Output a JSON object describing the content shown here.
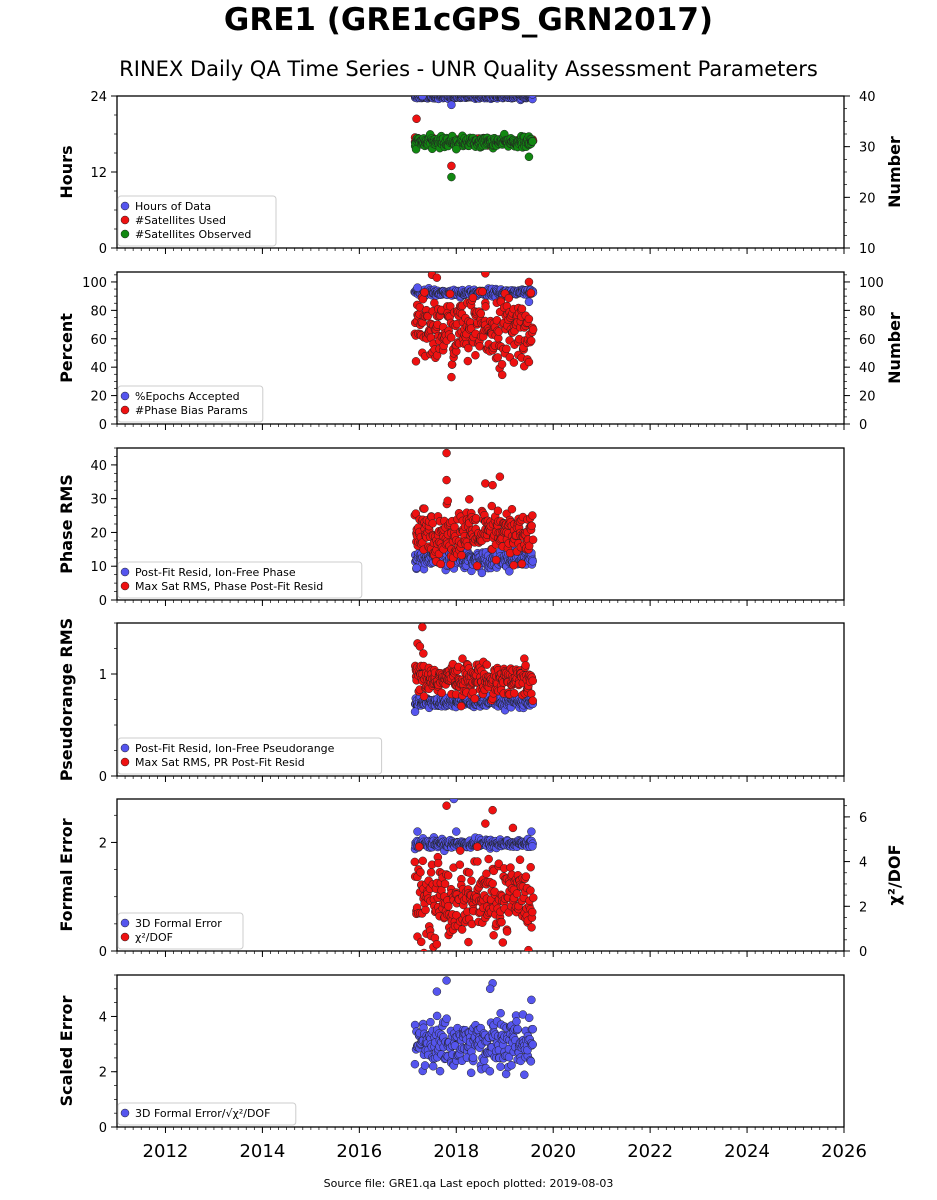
{
  "title": "GRE1 (GRE1cGPS_GRN2017)",
  "subtitle": "RINEX Daily QA Time Series - UNR Quality Assessment Parameters",
  "footer": "Source file: GRE1.qa Last epoch plotted: 2019-08-03",
  "colors": {
    "blue": "#5555ee",
    "red": "#ee1111",
    "green": "#118811"
  },
  "chart_data": [
    {
      "type": "scatter",
      "xlim": [
        2011.0,
        2026.0
      ],
      "xticks": [
        "2012",
        "2014",
        "2016",
        "2018",
        "2020",
        "2022",
        "2024",
        "2026"
      ],
      "ylabel": "Hours",
      "ylim": [
        0,
        24
      ],
      "yticks": [
        "0",
        "12",
        "24"
      ],
      "ylabel_right": "Number",
      "ylim_right": [
        10,
        40
      ],
      "yticks_right": [
        "10",
        "20",
        "30",
        "40"
      ],
      "legend": "lower-left",
      "series": [
        {
          "name": "Hours of Data",
          "color": "blue",
          "axis": "left",
          "x": [
            2017.15,
            2019.58
          ],
          "typical": 23.9,
          "spread": 0.15,
          "outliers": [
            [
              2017.9,
              22.6
            ],
            [
              2017.3,
              24.0
            ]
          ]
        },
        {
          "name": "#Satellites Used",
          "color": "red",
          "axis": "right",
          "x": [
            2017.15,
            2019.58
          ],
          "typical": 31.0,
          "spread": 0.3,
          "outliers": [
            [
              2017.18,
              35.5
            ],
            [
              2017.9,
              26.2
            ],
            [
              2017.95,
              30.5
            ]
          ]
        },
        {
          "name": "#Satellites Observed",
          "color": "green",
          "axis": "right",
          "x": [
            2017.15,
            2019.58
          ],
          "typical": 30.9,
          "spread": 0.5,
          "outliers": [
            [
              2017.9,
              24.0
            ],
            [
              2019.5,
              28.0
            ],
            [
              2018.0,
              29.5
            ]
          ]
        }
      ]
    },
    {
      "type": "scatter",
      "xlim": [
        2011.0,
        2026.0
      ],
      "xticks": [
        "2012",
        "2014",
        "2016",
        "2018",
        "2020",
        "2022",
        "2024",
        "2026"
      ],
      "ylabel": "Percent",
      "ylim": [
        0,
        107
      ],
      "yticks": [
        "0",
        "20",
        "40",
        "60",
        "80",
        "100"
      ],
      "ylabel_right": "Number",
      "ylim_right": [
        0,
        107
      ],
      "yticks_right": [
        "0",
        "20",
        "40",
        "60",
        "80",
        "100"
      ],
      "legend": "lower-left",
      "series": [
        {
          "name": "%Epochs Accepted",
          "color": "blue",
          "axis": "left",
          "x": [
            2017.15,
            2019.58
          ],
          "typical": 92.5,
          "spread": 1.2,
          "outliers": [
            [
              2017.2,
              96.0
            ],
            [
              2019.5,
              86.0
            ]
          ]
        },
        {
          "name": "#Phase Bias Params",
          "color": "red",
          "axis": "right",
          "x": [
            2017.15,
            2019.58
          ],
          "typical": 66,
          "spread": 12,
          "outliers": [
            [
              2017.9,
              33.0
            ],
            [
              2017.5,
              105.0
            ],
            [
              2018.6,
              106.0
            ],
            [
              2019.5,
              100.0
            ],
            [
              2017.6,
              103.0
            ]
          ]
        }
      ]
    },
    {
      "type": "scatter",
      "xlim": [
        2011.0,
        2026.0
      ],
      "xticks": [
        "2012",
        "2014",
        "2016",
        "2018",
        "2020",
        "2022",
        "2024",
        "2026"
      ],
      "ylabel": "Phase RMS",
      "ylim": [
        0,
        45
      ],
      "yticks": [
        "0",
        "10",
        "20",
        "30",
        "40"
      ],
      "legend": "lower-left",
      "series": [
        {
          "name": "Post-Fit Resid, Ion-Free Phase",
          "color": "blue",
          "axis": "left",
          "x": [
            2017.15,
            2019.58
          ],
          "typical": 12.0,
          "spread": 1.2,
          "outliers": [
            [
              2017.18,
              9.5
            ]
          ]
        },
        {
          "name": "Max Sat RMS, Phase Post-Fit Resid",
          "color": "red",
          "axis": "left",
          "x": [
            2017.15,
            2019.58
          ],
          "typical": 19.5,
          "spread": 3.8,
          "outliers": [
            [
              2017.8,
              43.5
            ],
            [
              2017.8,
              35.5
            ],
            [
              2018.6,
              34.5
            ],
            [
              2018.9,
              36.5
            ],
            [
              2018.75,
              34.0
            ]
          ]
        }
      ]
    },
    {
      "type": "scatter",
      "xlim": [
        2011.0,
        2026.0
      ],
      "xticks": [
        "2012",
        "2014",
        "2016",
        "2018",
        "2020",
        "2022",
        "2024",
        "2026"
      ],
      "ylabel": "Pseudorange RMS",
      "ylim": [
        0,
        1.5
      ],
      "yticks": [
        "0",
        "1"
      ],
      "legend": "lower-left",
      "series": [
        {
          "name": "Post-Fit Resid, Ion-Free Pseudorange",
          "color": "blue",
          "axis": "left",
          "x": [
            2017.15,
            2019.58
          ],
          "typical": 0.72,
          "spread": 0.025,
          "outliers": [
            [
              2017.15,
              0.63
            ]
          ]
        },
        {
          "name": "Max Sat RMS, PR Post-Fit Resid",
          "color": "red",
          "axis": "left",
          "x": [
            2017.15,
            2019.58
          ],
          "typical": 0.95,
          "spread": 0.08,
          "outliers": [
            [
              2017.3,
              1.46
            ],
            [
              2017.2,
              1.3
            ],
            [
              2017.25,
              1.27
            ]
          ]
        }
      ]
    },
    {
      "type": "scatter",
      "xlim": [
        2011.0,
        2026.0
      ],
      "xticks": [
        "2012",
        "2014",
        "2016",
        "2018",
        "2020",
        "2022",
        "2024",
        "2026"
      ],
      "ylabel": "Formal Error",
      "ylim": [
        0,
        2.8
      ],
      "yticks": [
        "0",
        "2"
      ],
      "ylabel_right": "χ²/DOF",
      "ylim_right": [
        0,
        6.8
      ],
      "yticks_right": [
        "0",
        "2",
        "4",
        "6"
      ],
      "legend": "lower-left",
      "series": [
        {
          "name": "3D Formal Error",
          "color": "blue",
          "axis": "left",
          "x": [
            2017.15,
            2019.58
          ],
          "typical": 1.98,
          "spread": 0.04,
          "outliers": [
            [
              2017.2,
              2.2
            ],
            [
              2017.95,
              2.8
            ],
            [
              2018.0,
              2.2
            ],
            [
              2019.55,
              2.2
            ]
          ]
        },
        {
          "name": "χ²/DOF",
          "color": "red",
          "axis": "right",
          "x": [
            2017.15,
            2019.58
          ],
          "typical": 2.3,
          "spread": 0.9,
          "outliers": [
            [
              2017.8,
              6.5
            ],
            [
              2018.75,
              6.3
            ],
            [
              2018.6,
              5.7
            ]
          ]
        }
      ]
    },
    {
      "type": "scatter",
      "xlim": [
        2011.0,
        2026.0
      ],
      "xticks": [
        "2012",
        "2014",
        "2016",
        "2018",
        "2020",
        "2022",
        "2024",
        "2026"
      ],
      "ylabel": "Scaled Error",
      "ylim": [
        0,
        5.5
      ],
      "yticks": [
        "0",
        "2",
        "4"
      ],
      "legend": "lower-left",
      "series": [
        {
          "name": "3D Formal Error/√χ²/DOF",
          "color": "blue",
          "axis": "left",
          "x": [
            2017.15,
            2019.58
          ],
          "typical": 3.0,
          "spread": 0.45,
          "outliers": [
            [
              2017.8,
              5.3
            ],
            [
              2017.6,
              4.9
            ],
            [
              2018.75,
              5.2
            ],
            [
              2018.7,
              5.0
            ],
            [
              2019.55,
              4.6
            ]
          ]
        }
      ]
    }
  ]
}
